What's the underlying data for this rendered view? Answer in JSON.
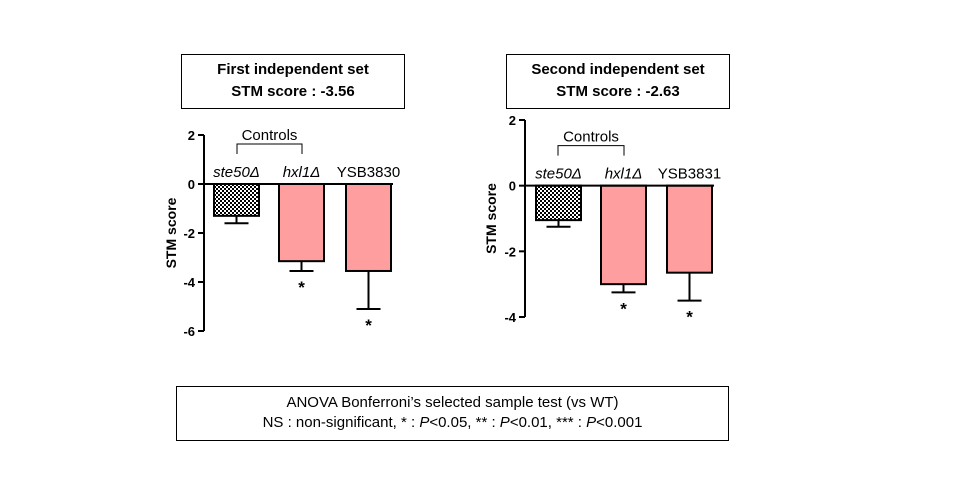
{
  "chart_data": [
    {
      "type": "bar",
      "title": "First independent set",
      "subtitle": "STM score : -3.56",
      "ylabel": "STM score",
      "xlabel": "",
      "ylim": [
        -6,
        2
      ],
      "yticks": [
        "2",
        "0",
        "-2",
        "-4",
        "-6"
      ],
      "ytick_values": [
        2,
        0,
        -2,
        -4,
        -6
      ],
      "group_label": "Controls",
      "categories": [
        "ste50Δ",
        "hxl1Δ",
        "YSB3830"
      ],
      "values": [
        -1.3,
        -3.15,
        -3.55
      ],
      "errors": [
        0.3,
        0.4,
        1.55
      ],
      "significance": [
        "",
        "*",
        "*"
      ],
      "fills": [
        "checker",
        "#ff9e9e",
        "#ff9e9e"
      ]
    },
    {
      "type": "bar",
      "title": "Second independent set",
      "subtitle": "STM score : -2.63",
      "ylabel": "STM score",
      "xlabel": "",
      "ylim": [
        -4,
        2
      ],
      "yticks": [
        "2",
        "0",
        "-2",
        "-4"
      ],
      "ytick_values": [
        2,
        0,
        -2,
        -4
      ],
      "group_label": "Controls",
      "categories": [
        "ste50Δ",
        "hxl1Δ",
        "YSB3831"
      ],
      "values": [
        -1.05,
        -3.0,
        -2.65
      ],
      "errors": [
        0.2,
        0.25,
        0.85
      ],
      "significance": [
        "",
        "*",
        "*"
      ],
      "fills": [
        "checker",
        "#ff9e9e",
        "#ff9e9e"
      ]
    }
  ],
  "legend": {
    "line1": "ANOVA Bonferroni’s selected sample test (vs WT)",
    "line2_parts": [
      "NS : non-significant, * : ",
      "P",
      "<0.05, ** : ",
      "P",
      "<0.01, *** : ",
      "P",
      "<0.001"
    ]
  }
}
